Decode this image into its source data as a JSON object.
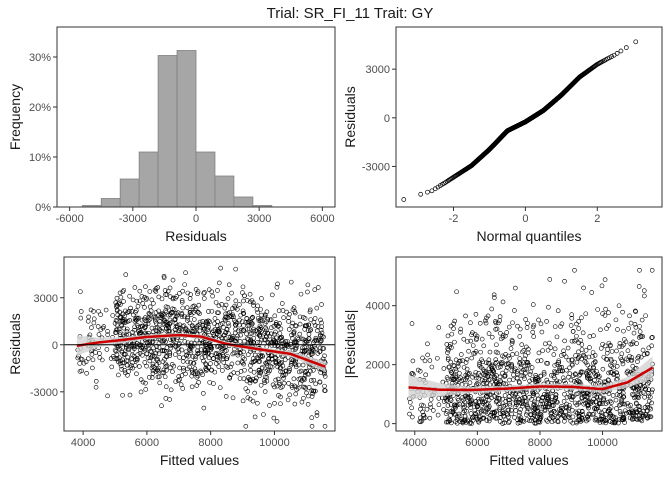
{
  "title": "Trial: SR_FI_11 Trait: GY",
  "chart_data": [
    {
      "type": "bar",
      "name": "histogram",
      "xlabel": "Residuals",
      "ylabel": "Frequency",
      "xlim": [
        -6600,
        6600
      ],
      "ylim": [
        0,
        0.36
      ],
      "xticks": [
        -6000,
        -3000,
        0,
        3000,
        6000
      ],
      "xtick_labels": [
        "-6000",
        "-3000",
        "0",
        "3000",
        "6000"
      ],
      "yticks": [
        0,
        0.1,
        0.2,
        0.3
      ],
      "ytick_labels": [
        "0%",
        "10%",
        "20%",
        "30%"
      ],
      "bins": [
        {
          "x0": -5400,
          "x1": -4500,
          "value": 0.003
        },
        {
          "x0": -4500,
          "x1": -3600,
          "value": 0.017
        },
        {
          "x0": -3600,
          "x1": -2700,
          "value": 0.056
        },
        {
          "x0": -2700,
          "x1": -1800,
          "value": 0.11
        },
        {
          "x0": -1800,
          "x1": -900,
          "value": 0.303
        },
        {
          "x0": -900,
          "x1": 0,
          "value": 0.313
        },
        {
          "x0": 0,
          "x1": 900,
          "value": 0.11
        },
        {
          "x0": 900,
          "x1": 1800,
          "value": 0.062
        },
        {
          "x0": 1800,
          "x1": 2700,
          "value": 0.02
        },
        {
          "x0": 2700,
          "x1": 3600,
          "value": 0.003
        }
      ],
      "fill": "#a6a6a6",
      "stroke": "#808080"
    },
    {
      "type": "scatter",
      "name": "qq",
      "xlabel": "Normal quantiles",
      "ylabel": "Residuals",
      "xlim": [
        -3.6,
        3.8
      ],
      "ylim": [
        -5500,
        5600
      ],
      "xticks": [
        -2,
        0,
        2
      ],
      "xtick_labels": [
        "-2",
        "0",
        "2"
      ],
      "yticks": [
        -3000,
        0,
        3000
      ],
      "ytick_labels": [
        "-3000",
        "0",
        "3000"
      ],
      "n_points": 1400,
      "quantile_shape": [
        {
          "z": -3.4,
          "r": -5050
        },
        {
          "z": -2.6,
          "r": -4500
        },
        {
          "z": -2.2,
          "r": -3950
        },
        {
          "z": -1.5,
          "r": -2950
        },
        {
          "z": -1.0,
          "r": -1950
        },
        {
          "z": -0.5,
          "r": -800
        },
        {
          "z": 0.0,
          "r": -250
        },
        {
          "z": 0.5,
          "r": 450
        },
        {
          "z": 1.0,
          "r": 1400
        },
        {
          "z": 1.5,
          "r": 2500
        },
        {
          "z": 2.0,
          "r": 3300
        },
        {
          "z": 2.5,
          "r": 3900
        },
        {
          "z": 3.0,
          "r": 4600
        },
        {
          "z": 3.45,
          "r": 5150
        }
      ]
    },
    {
      "type": "scatter",
      "name": "residuals-vs-fitted",
      "xlabel": "Fitted values",
      "ylabel": "Residuals",
      "xlim": [
        3400,
        11900
      ],
      "ylim": [
        -5500,
        5600
      ],
      "xticks": [
        4000,
        6000,
        8000,
        10000
      ],
      "xtick_labels": [
        "4000",
        "6000",
        "8000",
        "10000"
      ],
      "yticks": [
        -3000,
        0,
        3000
      ],
      "ytick_labels": [
        "-3000",
        "0",
        "3000"
      ],
      "n_points": 1400,
      "reference_line": 0,
      "smooth": {
        "color": "#cc0000",
        "band_color": "#d3d3d3",
        "points": [
          {
            "x": 3800,
            "y": -60,
            "se": 650
          },
          {
            "x": 4500,
            "y": 150,
            "se": 300
          },
          {
            "x": 5200,
            "y": 300,
            "se": 200
          },
          {
            "x": 6000,
            "y": 500,
            "se": 150
          },
          {
            "x": 7000,
            "y": 620,
            "se": 140
          },
          {
            "x": 7700,
            "y": 520,
            "se": 140
          },
          {
            "x": 8500,
            "y": 50,
            "se": 140
          },
          {
            "x": 9500,
            "y": -280,
            "se": 140
          },
          {
            "x": 10500,
            "y": -580,
            "se": 180
          },
          {
            "x": 11600,
            "y": -1400,
            "se": 330
          }
        ]
      }
    },
    {
      "type": "scatter",
      "name": "abs-residuals-vs-fitted",
      "xlabel": "Fitted values",
      "ylabel": "|Residuals|",
      "xlim": [
        3400,
        11900
      ],
      "ylim": [
        -250,
        5650
      ],
      "xticks": [
        4000,
        6000,
        8000,
        10000
      ],
      "xtick_labels": [
        "4000",
        "6000",
        "8000",
        "10000"
      ],
      "yticks": [
        0,
        2000,
        4000
      ],
      "ytick_labels": [
        "0",
        "2000",
        "4000"
      ],
      "n_points": 1400,
      "smooth": {
        "color": "#cc0000",
        "band_color": "#d3d3d3",
        "points": [
          {
            "x": 3800,
            "y": 1230,
            "se": 420
          },
          {
            "x": 4800,
            "y": 1150,
            "se": 220
          },
          {
            "x": 5800,
            "y": 1140,
            "se": 110
          },
          {
            "x": 7000,
            "y": 1190,
            "se": 100
          },
          {
            "x": 8000,
            "y": 1260,
            "se": 100
          },
          {
            "x": 9000,
            "y": 1250,
            "se": 100
          },
          {
            "x": 10000,
            "y": 1170,
            "se": 120
          },
          {
            "x": 10800,
            "y": 1400,
            "se": 180
          },
          {
            "x": 11600,
            "y": 1900,
            "se": 380
          }
        ]
      }
    }
  ]
}
